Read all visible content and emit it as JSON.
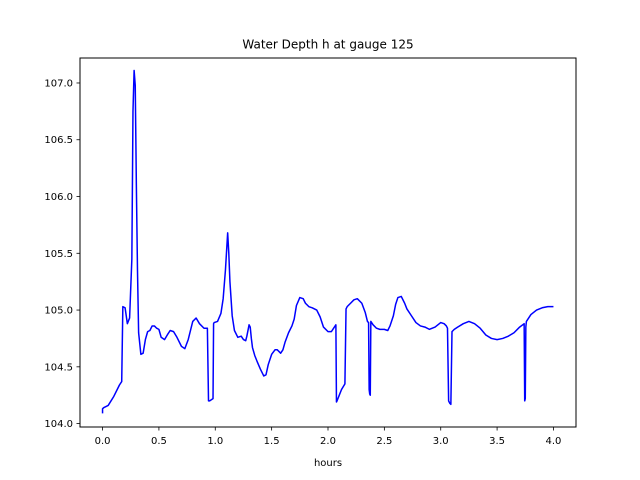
{
  "chart_data": {
    "type": "line",
    "title": "Water Depth h at gauge 125",
    "xlabel": "hours",
    "ylabel": "",
    "xlim": [
      -0.2,
      4.2
    ],
    "ylim": [
      103.97,
      107.22
    ],
    "xticks": [
      "0.0",
      "0.5",
      "1.0",
      "1.5",
      "2.0",
      "2.5",
      "3.0",
      "3.5",
      "4.0"
    ],
    "yticks": [
      "104.0",
      "104.5",
      "105.0",
      "105.5",
      "106.0",
      "106.5",
      "107.0"
    ],
    "grid": false,
    "series_color": "#0000ff",
    "series": [
      {
        "name": "",
        "x": [
          0.0,
          0.0,
          0.01,
          0.05,
          0.1,
          0.15,
          0.17,
          0.18,
          0.2,
          0.22,
          0.24,
          0.26,
          0.27,
          0.28,
          0.29,
          0.3,
          0.31,
          0.32,
          0.34,
          0.36,
          0.38,
          0.4,
          0.42,
          0.44,
          0.46,
          0.48,
          0.5,
          0.52,
          0.55,
          0.58,
          0.6,
          0.63,
          0.66,
          0.7,
          0.73,
          0.76,
          0.8,
          0.83,
          0.86,
          0.9,
          0.93,
          0.94,
          0.95,
          0.98,
          0.985,
          0.99,
          1.02,
          1.05,
          1.07,
          1.09,
          1.11,
          1.12,
          1.13,
          1.15,
          1.17,
          1.2,
          1.23,
          1.25,
          1.27,
          1.28,
          1.3,
          1.31,
          1.32,
          1.33,
          1.35,
          1.37,
          1.4,
          1.43,
          1.45,
          1.47,
          1.5,
          1.53,
          1.55,
          1.58,
          1.6,
          1.62,
          1.65,
          1.68,
          1.7,
          1.72,
          1.75,
          1.78,
          1.8,
          1.83,
          1.86,
          1.9,
          1.93,
          1.96,
          2.0,
          2.03,
          2.05,
          2.07,
          2.075,
          2.08,
          2.1,
          2.12,
          2.15,
          2.16,
          2.17,
          2.2,
          2.23,
          2.26,
          2.3,
          2.33,
          2.35,
          2.36,
          2.365,
          2.37,
          2.375,
          2.38,
          2.4,
          2.43,
          2.46,
          2.5,
          2.53,
          2.55,
          2.58,
          2.6,
          2.62,
          2.65,
          2.68,
          2.7,
          2.74,
          2.78,
          2.82,
          2.86,
          2.9,
          2.95,
          3.0,
          3.03,
          3.05,
          3.06,
          3.07,
          3.08,
          3.09,
          3.1,
          3.12,
          3.15,
          3.2,
          3.25,
          3.3,
          3.35,
          3.4,
          3.45,
          3.5,
          3.55,
          3.6,
          3.65,
          3.7,
          3.74,
          3.745,
          3.75,
          3.755,
          3.76,
          3.8,
          3.85,
          3.9,
          3.95,
          4.0
        ],
        "values": [
          104.09,
          104.13,
          104.14,
          104.16,
          104.24,
          104.34,
          104.37,
          105.03,
          105.02,
          104.88,
          104.93,
          105.45,
          106.75,
          107.11,
          106.98,
          106.1,
          105.35,
          104.8,
          104.61,
          104.62,
          104.74,
          104.81,
          104.82,
          104.86,
          104.86,
          104.84,
          104.83,
          104.76,
          104.74,
          104.79,
          104.82,
          104.81,
          104.76,
          104.68,
          104.66,
          104.74,
          104.9,
          104.93,
          104.88,
          104.84,
          104.84,
          104.2,
          104.2,
          104.22,
          104.88,
          104.89,
          104.9,
          104.97,
          105.1,
          105.35,
          105.68,
          105.5,
          105.25,
          104.95,
          104.82,
          104.76,
          104.77,
          104.74,
          104.73,
          104.77,
          104.87,
          104.85,
          104.75,
          104.67,
          104.6,
          104.55,
          104.48,
          104.42,
          104.43,
          104.52,
          104.61,
          104.65,
          104.65,
          104.62,
          104.65,
          104.72,
          104.8,
          104.86,
          104.92,
          105.04,
          105.11,
          105.1,
          105.06,
          105.03,
          105.02,
          105.0,
          104.94,
          104.85,
          104.81,
          104.81,
          104.84,
          104.87,
          104.19,
          104.2,
          104.25,
          104.3,
          104.35,
          105.01,
          105.03,
          105.06,
          105.09,
          105.1,
          105.06,
          104.98,
          104.9,
          104.89,
          104.3,
          104.26,
          104.25,
          104.9,
          104.87,
          104.84,
          104.83,
          104.83,
          104.82,
          104.86,
          104.95,
          105.05,
          105.11,
          105.12,
          105.06,
          105.01,
          104.95,
          104.89,
          104.86,
          104.85,
          104.83,
          104.85,
          104.89,
          104.88,
          104.86,
          104.84,
          104.2,
          104.18,
          104.17,
          104.81,
          104.83,
          104.85,
          104.88,
          104.9,
          104.88,
          104.84,
          104.78,
          104.75,
          104.74,
          104.75,
          104.77,
          104.8,
          104.85,
          104.88,
          104.2,
          104.22,
          104.85,
          104.9,
          104.96,
          105.0,
          105.02,
          105.03,
          105.03
        ]
      }
    ]
  }
}
